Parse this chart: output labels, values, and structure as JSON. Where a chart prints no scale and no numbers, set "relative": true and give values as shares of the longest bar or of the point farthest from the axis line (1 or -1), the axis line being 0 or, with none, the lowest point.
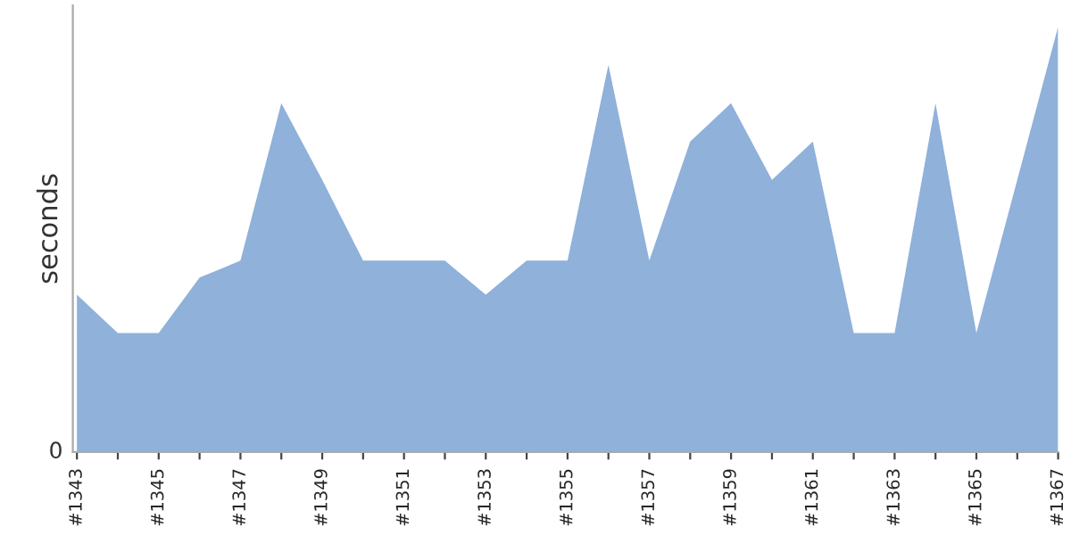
{
  "chart_data": {
    "type": "area",
    "ylabel": "seconds",
    "relative": true,
    "grid": false,
    "legend": false,
    "categories": [
      "#1343",
      null,
      "#1345",
      null,
      "#1347",
      null,
      "#1349",
      null,
      "#1351",
      null,
      "#1353",
      null,
      "#1355",
      null,
      "#1357",
      null,
      "#1359",
      null,
      "#1361",
      null,
      "#1363",
      null,
      "#1365",
      null,
      "#1367"
    ],
    "series": [
      {
        "color": "#8fb1da",
        "values": [
          0.37,
          0.28,
          0.28,
          0.41,
          0.45,
          0.82,
          0.64,
          0.45,
          0.45,
          0.45,
          0.37,
          0.45,
          0.45,
          0.91,
          0.45,
          0.73,
          0.82,
          0.64,
          0.73,
          0.28,
          0.28,
          0.82,
          0.28,
          0.64,
          1
        ]
      }
    ],
    "annotations": [
      "0"
    ]
  }
}
